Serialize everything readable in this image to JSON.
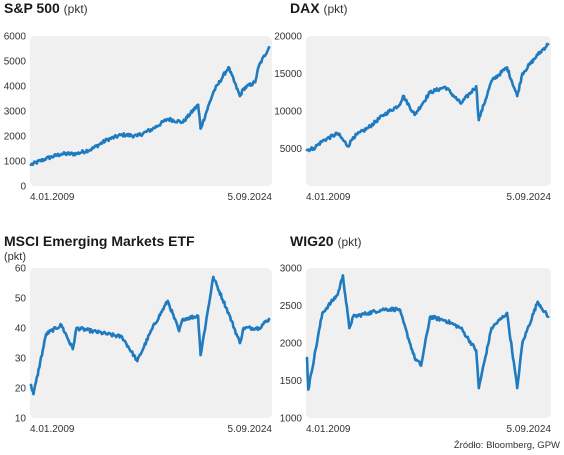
{
  "source_note": "Źródło: Bloomberg, GPW",
  "accent_color": "#1f7bc0",
  "plot_bg": "#f0f0f0",
  "chart_data": [
    {
      "type": "line",
      "title": "S&P 500",
      "unit": "(pkt)",
      "ylabel": "",
      "ylim": [
        0,
        6000
      ],
      "yticks": [
        0,
        1000,
        2000,
        3000,
        4000,
        5000,
        6000
      ],
      "x_labels": [
        "4.01.2009",
        "5.09.2024"
      ],
      "x": [
        "2009",
        "2010",
        "2011",
        "2012",
        "2013",
        "2014",
        "2015",
        "2016",
        "2017",
        "2018",
        "2019",
        "2020",
        "2020-03",
        "2021",
        "2022",
        "2022-10",
        "2023",
        "2023-10",
        "2024",
        "2024-09"
      ],
      "values": [
        850,
        1100,
        1280,
        1290,
        1480,
        1850,
        2050,
        2000,
        2280,
        2680,
        2550,
        3250,
        2300,
        3750,
        4750,
        3600,
        3900,
        4150,
        4800,
        5550
      ]
    },
    {
      "type": "line",
      "title": "DAX",
      "unit": "(pkt)",
      "ylabel": "",
      "ylim": [
        0,
        20000
      ],
      "yticks": [
        5000,
        10000,
        15000,
        20000
      ],
      "x_labels": [
        "4.01.2009",
        "5.09.2024"
      ],
      "x": [
        "2009",
        "2009-06",
        "2010",
        "2011",
        "2011-09",
        "2012",
        "2013",
        "2014",
        "2015",
        "2015-04",
        "2016",
        "2017",
        "2018",
        "2019",
        "2020",
        "2020-03",
        "2021",
        "2022",
        "2022-09",
        "2023",
        "2024",
        "2024-09"
      ],
      "values": [
        4800,
        5000,
        6000,
        7000,
        5300,
        6500,
        7800,
        9500,
        10800,
        12000,
        9500,
        12500,
        13200,
        11000,
        13300,
        8800,
        14000,
        15800,
        12000,
        15000,
        17500,
        18900
      ]
    },
    {
      "type": "line",
      "title": "MSCI Emerging Markets ETF",
      "unit": "",
      "ylabel": "(pkt)",
      "ylim": [
        10,
        60
      ],
      "yticks": [
        10,
        20,
        30,
        40,
        50,
        60
      ],
      "x_labels": [
        "4.01.2009",
        "5.09.2024"
      ],
      "x": [
        "2009",
        "2009-03",
        "2010",
        "2011",
        "2011-10",
        "2012",
        "2013",
        "2014",
        "2015",
        "2016",
        "2017",
        "2018",
        "2018-10",
        "2019",
        "2020",
        "2020-03",
        "2021",
        "2022",
        "2022-10",
        "2023",
        "2024",
        "2024-09"
      ],
      "values": [
        21,
        18,
        38,
        41,
        33,
        40,
        39,
        38,
        37,
        29,
        40,
        49,
        39,
        43,
        44,
        31,
        57,
        45,
        35,
        40,
        40,
        43
      ]
    },
    {
      "type": "line",
      "title": "WIG20",
      "unit": "(pkt)",
      "ylabel": "",
      "ylim": [
        1000,
        3000
      ],
      "yticks": [
        1000,
        1500,
        2000,
        2500,
        3000
      ],
      "x_labels": [
        "4.01.2009",
        "5.09.2024"
      ],
      "x": [
        "2009",
        "2009-02",
        "2010",
        "2011",
        "2011-05",
        "2011-10",
        "2012",
        "2013",
        "2014",
        "2015",
        "2016",
        "2016-06",
        "2017",
        "2018",
        "2019",
        "2020",
        "2020-03",
        "2021",
        "2022",
        "2022-09",
        "2023",
        "2024",
        "2024-09"
      ],
      "values": [
        1800,
        1380,
        2400,
        2650,
        2900,
        2200,
        2350,
        2400,
        2450,
        2450,
        1800,
        1700,
        2350,
        2300,
        2200,
        1900,
        1400,
        2200,
        2400,
        1400,
        2000,
        2550,
        2350
      ]
    }
  ]
}
